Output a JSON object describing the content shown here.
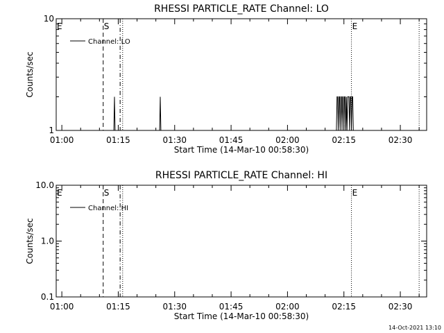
{
  "chart_data": [
    {
      "type": "line",
      "title": "RHESSI PARTICLE_RATE Channel: LO",
      "xlabel": "Start Time (14-Mar-10 00:58:30)",
      "ylabel": "Counts/sec",
      "yscale": "log",
      "ylim": [
        1,
        10
      ],
      "yticks": [
        1,
        10
      ],
      "ytick_labels": [
        "1",
        "10"
      ],
      "xlim": [
        "00:58:30",
        "02:37:00"
      ],
      "xticks": [
        "01:00",
        "01:15",
        "01:30",
        "01:45",
        "02:00",
        "02:15",
        "02:30"
      ],
      "legend": "top-left",
      "series": [
        {
          "name": "Channel: LO",
          "x": [
            "01:13:30",
            "01:13:50",
            "01:14:00",
            "01:14:10",
            "01:14:20",
            "01:26:00",
            "01:26:10",
            "01:26:20",
            "01:26:30",
            "02:13:00",
            "02:13:10",
            "02:13:20",
            "02:13:30",
            "02:13:40",
            "02:13:50",
            "02:14:00",
            "02:14:10",
            "02:14:20",
            "02:14:30",
            "02:14:40",
            "02:14:50",
            "02:15:00",
            "02:15:10",
            "02:15:20",
            "02:15:30",
            "02:15:40",
            "02:15:50",
            "02:16:00",
            "02:16:10",
            "02:16:20",
            "02:16:30",
            "02:16:40",
            "02:16:50",
            "02:17:00",
            "02:17:10",
            "02:17:20",
            "02:17:30",
            "02:17:40",
            "02:17:50"
          ],
          "y": [
            1,
            1,
            2,
            1,
            1,
            1,
            2,
            1,
            1,
            1,
            2,
            2,
            1,
            2,
            2,
            1,
            2,
            2,
            1,
            2,
            2,
            1,
            2,
            2,
            1,
            2,
            1,
            2,
            2,
            2,
            1,
            2,
            2,
            1,
            2,
            2,
            1,
            1,
            1
          ]
        }
      ],
      "markers": [
        {
          "label": "E",
          "x": "00:58:30",
          "style": "none"
        },
        {
          "label": "S",
          "x": "01:11:00",
          "style": "dashed"
        },
        {
          "label": "",
          "x": "01:15:30",
          "style": "dashdot"
        },
        {
          "label": "",
          "x": "01:16:10",
          "style": "dotted"
        },
        {
          "label": "E",
          "x": "02:17:00",
          "style": "dotted"
        },
        {
          "label": "",
          "x": "02:35:00",
          "style": "dotted"
        }
      ]
    },
    {
      "type": "line",
      "title": "RHESSI PARTICLE_RATE Channel: HI",
      "xlabel": "Start Time (14-Mar-10 00:58:30)",
      "ylabel": "Counts/sec",
      "yscale": "log",
      "ylim": [
        0.1,
        10
      ],
      "yticks": [
        0.1,
        1,
        10
      ],
      "ytick_labels": [
        "0.1",
        "1.0",
        "10.0"
      ],
      "xlim": [
        "00:58:30",
        "02:37:00"
      ],
      "xticks": [
        "01:00",
        "01:15",
        "01:30",
        "01:45",
        "02:00",
        "02:15",
        "02:30"
      ],
      "legend": "top-left",
      "series": [
        {
          "name": "Channel: HI",
          "x": [],
          "y": []
        }
      ],
      "markers": [
        {
          "label": "E",
          "x": "00:58:30",
          "style": "none"
        },
        {
          "label": "S",
          "x": "01:11:00",
          "style": "dashed"
        },
        {
          "label": "",
          "x": "01:15:30",
          "style": "dashdot"
        },
        {
          "label": "",
          "x": "01:16:10",
          "style": "dotted"
        },
        {
          "label": "E",
          "x": "02:17:00",
          "style": "dotted"
        },
        {
          "label": "",
          "x": "02:35:00",
          "style": "dotted"
        }
      ]
    }
  ],
  "footer": {
    "timestamp": "14-Oct-2021 13:10"
  }
}
